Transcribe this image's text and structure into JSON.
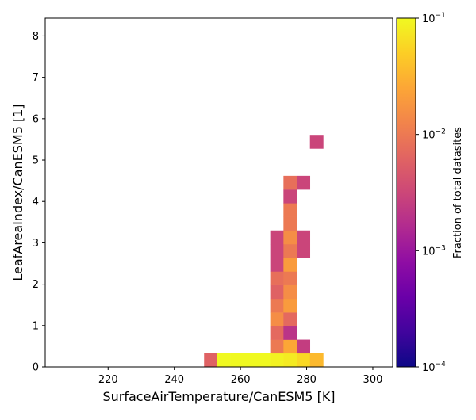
{
  "chart_data": {
    "type": "heatmap",
    "xlabel": "SurfaceAirTemperature/CanESM5 [K]",
    "ylabel": "LeafAreaIndex/CanESM5 [1]",
    "colorbar_label": "Fraction of total datasites",
    "colormap": "plasma",
    "color_scale": "log",
    "color_range": [
      0.0001,
      0.1
    ],
    "xlim": [
      201,
      306
    ],
    "ylim": [
      0,
      8.43
    ],
    "x_ticks": [
      220,
      240,
      260,
      280,
      300
    ],
    "y_ticks": [
      0,
      1,
      2,
      3,
      4,
      5,
      6,
      7,
      8
    ],
    "colorbar_ticks": [
      {
        "value": 0.0001,
        "base": "10",
        "exp": "−4"
      },
      {
        "value": 0.001,
        "base": "10",
        "exp": "−3"
      },
      {
        "value": 0.01,
        "base": "10",
        "exp": "−2"
      },
      {
        "value": 0.1,
        "base": "10",
        "exp": "−1"
      }
    ],
    "bin_width_x": 4,
    "bin_height_y": 0.33,
    "cells": [
      {
        "x": 249,
        "y": 0,
        "value": 0.006
      },
      {
        "x": 253,
        "y": 0,
        "value": 0.1
      },
      {
        "x": 257,
        "y": 0,
        "value": 0.1
      },
      {
        "x": 261,
        "y": 0,
        "value": 0.1
      },
      {
        "x": 265,
        "y": 0,
        "value": 0.1
      },
      {
        "x": 269,
        "y": 0,
        "value": 0.09
      },
      {
        "x": 273,
        "y": 0,
        "value": 0.08
      },
      {
        "x": 277,
        "y": 0,
        "value": 0.06
      },
      {
        "x": 281,
        "y": 0,
        "value": 0.035
      },
      {
        "x": 269,
        "y": 0.33,
        "value": 0.01
      },
      {
        "x": 273,
        "y": 0.33,
        "value": 0.025
      },
      {
        "x": 277,
        "y": 0.33,
        "value": 0.0025
      },
      {
        "x": 269,
        "y": 0.66,
        "value": 0.007
      },
      {
        "x": 273,
        "y": 0.66,
        "value": 0.002
      },
      {
        "x": 269,
        "y": 0.99,
        "value": 0.015
      },
      {
        "x": 273,
        "y": 0.99,
        "value": 0.007
      },
      {
        "x": 269,
        "y": 1.32,
        "value": 0.01
      },
      {
        "x": 273,
        "y": 1.32,
        "value": 0.02
      },
      {
        "x": 269,
        "y": 1.65,
        "value": 0.006
      },
      {
        "x": 273,
        "y": 1.65,
        "value": 0.015
      },
      {
        "x": 269,
        "y": 1.98,
        "value": 0.008
      },
      {
        "x": 273,
        "y": 1.98,
        "value": 0.01
      },
      {
        "x": 269,
        "y": 2.31,
        "value": 0.003
      },
      {
        "x": 273,
        "y": 2.31,
        "value": 0.02
      },
      {
        "x": 269,
        "y": 2.64,
        "value": 0.003
      },
      {
        "x": 273,
        "y": 2.64,
        "value": 0.01
      },
      {
        "x": 277,
        "y": 2.64,
        "value": 0.003
      },
      {
        "x": 269,
        "y": 2.97,
        "value": 0.003
      },
      {
        "x": 273,
        "y": 2.97,
        "value": 0.015
      },
      {
        "x": 277,
        "y": 2.97,
        "value": 0.003
      },
      {
        "x": 273,
        "y": 3.3,
        "value": 0.01
      },
      {
        "x": 273,
        "y": 3.63,
        "value": 0.01
      },
      {
        "x": 273,
        "y": 3.96,
        "value": 0.003
      },
      {
        "x": 273,
        "y": 4.29,
        "value": 0.008
      },
      {
        "x": 277,
        "y": 4.29,
        "value": 0.003
      },
      {
        "x": 281,
        "y": 5.28,
        "value": 0.003
      }
    ]
  }
}
